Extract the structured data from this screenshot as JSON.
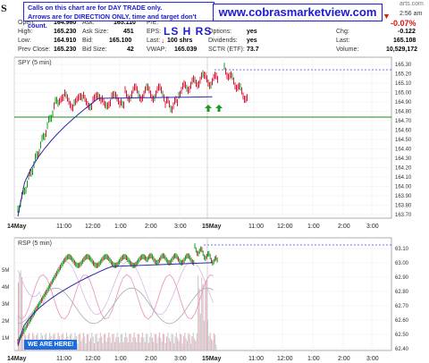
{
  "header": {
    "ticker": "S",
    "callout_lines": [
      "Calls on this chart are for DAY TRADE only.",
      "Arrows are for DIRECTION ONLY, time and target don't count."
    ],
    "banner": "www.cobrasmarketview.com",
    "ls_hrs": "LS H RS",
    "time_fragment": "2:56 am",
    "site_fragment": "arts.com",
    "chg_pct": "-0.07%",
    "fields": {
      "open": {
        "label": "Open:",
        "value": "164.960"
      },
      "high": {
        "label": "High:",
        "value": "165.230"
      },
      "low": {
        "label": "Low:",
        "value": "164.910"
      },
      "prev_close": {
        "label": "Prev Close:",
        "value": "165.230"
      },
      "ask": {
        "label": "Ask:",
        "value": "165.110"
      },
      "ask_size": {
        "label": "Ask Size:",
        "value": "451"
      },
      "bid": {
        "label": "Bid:",
        "value": "165.100"
      },
      "bid_size": {
        "label": "Bid Size:",
        "value": "42"
      },
      "pe": {
        "label": "P/E:",
        "value": ""
      },
      "eps": {
        "label": "EPS:",
        "value": ""
      },
      "last_shrs": {
        "label": "Last:",
        "value": "100 shrs"
      },
      "vwap": {
        "label": "VWAP:",
        "value": "165.039"
      },
      "options": {
        "label": "Options:",
        "value": "yes"
      },
      "dividends": {
        "label": "Dividends:",
        "value": "yes"
      },
      "sctr": {
        "label": "SCTR (ETF):",
        "value": "73.7"
      },
      "chg": {
        "label": "Chg:",
        "value": "-0.122"
      },
      "last": {
        "label": "Last:",
        "value": "165.108"
      },
      "volume": {
        "label": "Volume:",
        "value": "10,529,172"
      }
    }
  },
  "colors": {
    "up_bar": "#1a9a1a",
    "down_bar": "#d81a3a",
    "ma": "#2a2aa8",
    "reference_line": "#1a8a1a",
    "dashed_level": "#4a4ae0",
    "callout": "#1a1ad8"
  },
  "price_panel": {
    "label": "SPY (5 min)",
    "y_ticks": [
      "165.30",
      "165.20",
      "165.10",
      "165.00",
      "164.90",
      "164.80",
      "164.70",
      "164.60",
      "164.50",
      "164.40",
      "164.30",
      "164.20",
      "164.10",
      "164.00",
      "163.90",
      "163.80",
      "163.70"
    ],
    "x_ticks": [
      "14May",
      "11:00",
      "12:00",
      "1:00",
      "2:00",
      "3:00",
      "15May",
      "11:00",
      "12:00",
      "1:00",
      "2:00",
      "3:00"
    ],
    "arrows": [
      "up-arrow",
      "up-arrow"
    ]
  },
  "rsp_panel": {
    "label": "RSP (5 min)",
    "y_ticks_right": [
      "63.10",
      "63.00",
      "62.90",
      "62.80",
      "62.70",
      "62.60",
      "62.50",
      "62.40"
    ],
    "y_ticks_left": [
      "5M",
      "4M",
      "3M",
      "2M",
      "1M"
    ],
    "x_ticks": [
      "14May",
      "11:00",
      "12:00",
      "1:00",
      "2:00",
      "3:00",
      "15May",
      "11:00",
      "12:00",
      "1:00",
      "2:00",
      "3:00"
    ],
    "badge": "WE ARE HERE!"
  }
}
